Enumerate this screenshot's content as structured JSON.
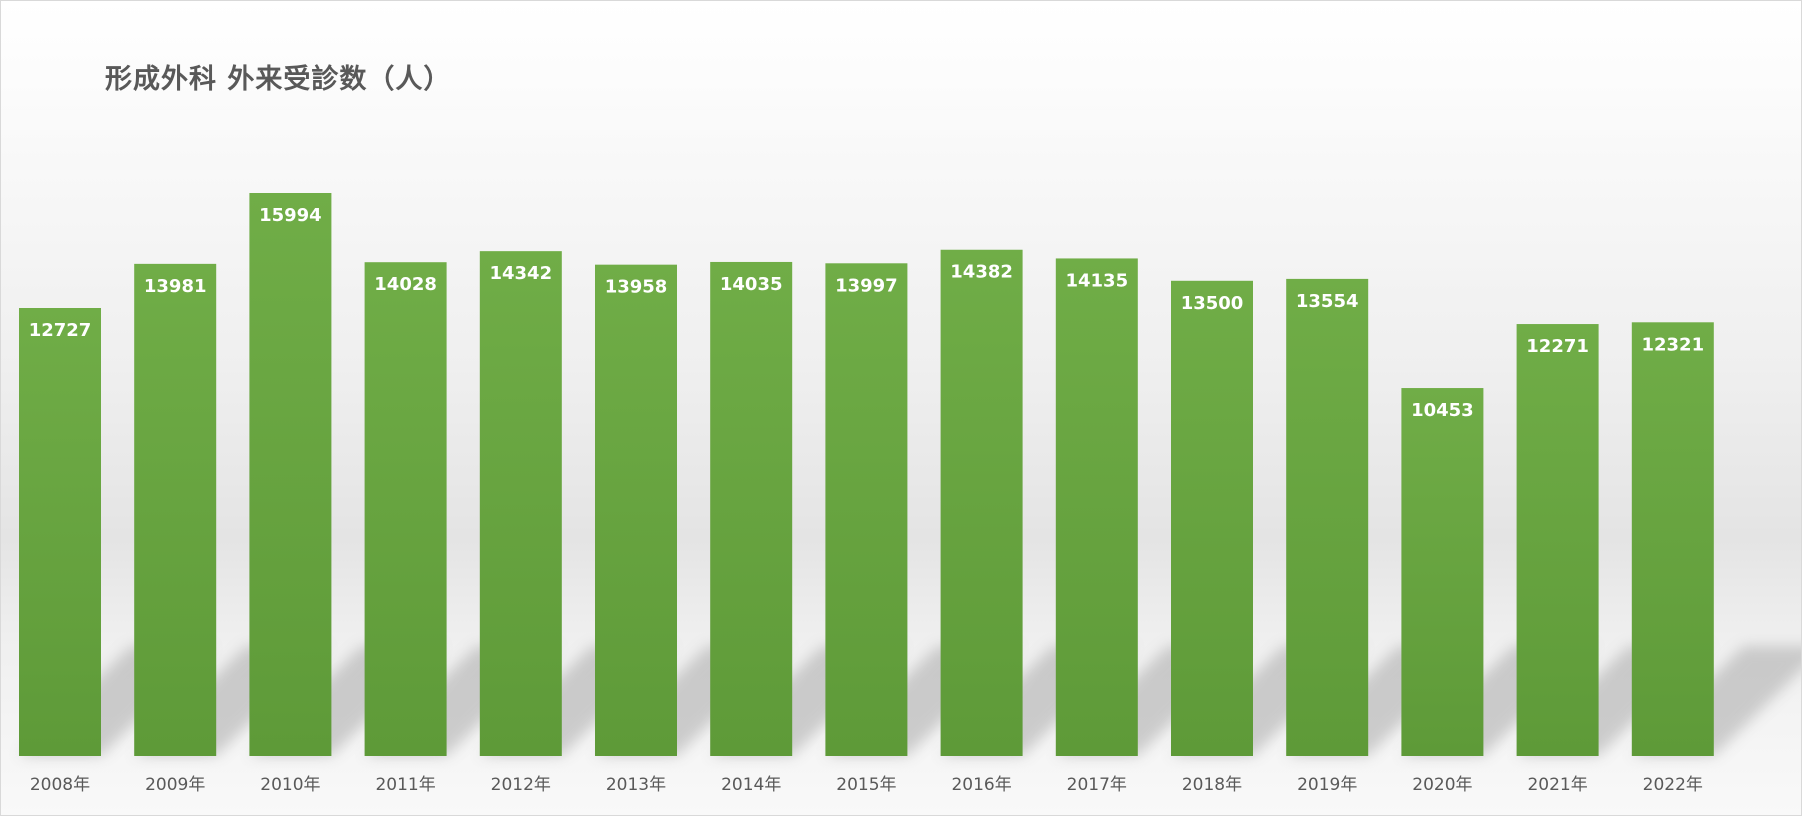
{
  "chart_data": {
    "type": "bar",
    "title": "形成外科  外来受診数（人）",
    "categories": [
      "2008年",
      "2009年",
      "2010年",
      "2011年",
      "2012年",
      "2013年",
      "2014年",
      "2015年",
      "2016年",
      "2017年",
      "2018年",
      "2019年",
      "2020年",
      "2021年",
      "2022年"
    ],
    "values": [
      12727,
      13981,
      15994,
      14028,
      14342,
      13958,
      14035,
      13997,
      14382,
      14135,
      13500,
      13554,
      10453,
      12271,
      12321
    ],
    "xlabel": "",
    "ylabel": "",
    "ylim": [
      0,
      18000
    ],
    "grid": false,
    "legend": "none",
    "bar_color_top": "#70ad47",
    "bar_color_bottom": "#5e9a38",
    "data_label_color": "#ffffff"
  }
}
